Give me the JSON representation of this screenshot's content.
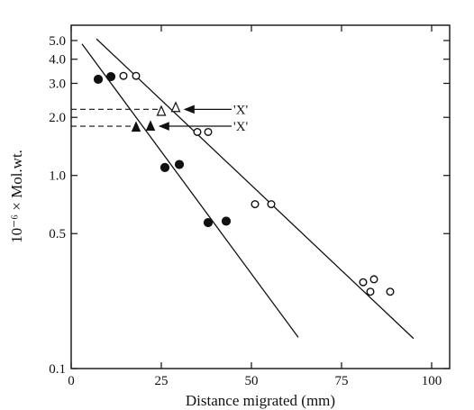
{
  "chart_data": {
    "type": "scatter",
    "title": "",
    "xlabel": "Distance migrated (mm)",
    "ylabel": "10⁻⁶ × Mol.wt.",
    "xlim": [
      0,
      105
    ],
    "ylim": [
      0.1,
      6.0
    ],
    "y_scale": "log",
    "grid": false,
    "x_ticks": [
      0,
      25,
      50,
      75,
      100
    ],
    "x_tick_labels": [
      "0",
      "25",
      "50",
      "75",
      "100"
    ],
    "y_ticks": [
      0.1,
      0.5,
      1.0,
      2.0,
      3.0,
      4.0,
      5.0
    ],
    "y_tick_labels": [
      "0.1",
      "0.5",
      "1.0",
      "2.0",
      "3.0",
      "4.0",
      "5.0"
    ],
    "series": [
      {
        "marker": "filled-circle",
        "points": [
          [
            7.5,
            3.15
          ],
          [
            11,
            3.25
          ],
          [
            26,
            1.1
          ],
          [
            30,
            1.14
          ],
          [
            38,
            0.57
          ],
          [
            43,
            0.58
          ]
        ]
      },
      {
        "marker": "open-circle",
        "points": [
          [
            14.5,
            3.28
          ],
          [
            18,
            3.28
          ],
          [
            35,
            1.68
          ],
          [
            38,
            1.68
          ],
          [
            51,
            0.71
          ],
          [
            55.5,
            0.71
          ],
          [
            81,
            0.28
          ],
          [
            83,
            0.25
          ],
          [
            84,
            0.29
          ],
          [
            88.5,
            0.25
          ]
        ]
      },
      {
        "marker": "filled-triangle",
        "points": [
          [
            18,
            1.78
          ],
          [
            22,
            1.8
          ]
        ]
      },
      {
        "marker": "open-triangle",
        "points": [
          [
            25,
            2.15
          ],
          [
            29,
            2.25
          ]
        ]
      }
    ],
    "fit_lines": [
      {
        "from": [
          3,
          4.8
        ],
        "to": [
          63,
          0.145
        ]
      },
      {
        "from": [
          7,
          5.1
        ],
        "to": [
          95,
          0.143
        ]
      }
    ],
    "annotations": [
      {
        "text": "'X'",
        "x": 46,
        "y": 2.2,
        "arrow_to_x": 30.5,
        "dashed_to_x": 0,
        "dashed_y": 2.2
      },
      {
        "text": "'X'",
        "x": 46,
        "y": 1.8,
        "arrow_to_x": 23.5,
        "dashed_to_x": 0,
        "dashed_y": 1.8
      }
    ]
  }
}
